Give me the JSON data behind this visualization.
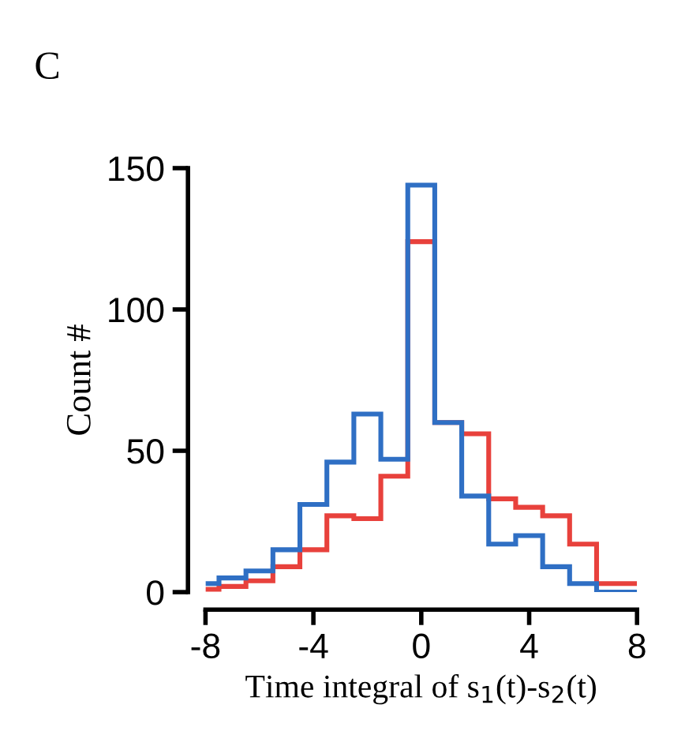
{
  "chart_data": {
    "type": "histogram",
    "title": "C",
    "xlabel": "Time integral of s$_{1}$(t)-s$_{2}$(t)",
    "ylabel": "Count #",
    "bins": [
      -8,
      -7.5,
      -6.5,
      -5.5,
      -4.5,
      -3.5,
      -2.5,
      -1.5,
      -0.5,
      0.5,
      1.5,
      2.5,
      3.5,
      4.5,
      5.5,
      6.5,
      7.5,
      8
    ],
    "series": [
      {
        "color": "#e8413c",
        "values": [
          1,
          2,
          4,
          9,
          15,
          27,
          26,
          41,
          124,
          60,
          56,
          33,
          30,
          27,
          17,
          3,
          3
        ]
      },
      {
        "color": "#2f6fc4",
        "values": [
          3,
          5,
          7.5,
          15,
          31,
          46,
          63,
          47,
          144,
          60,
          34,
          17,
          20,
          9,
          3,
          0,
          0
        ]
      }
    ],
    "xlim": [
      -8,
      8
    ],
    "xticks": [
      -8,
      -4,
      0,
      4,
      8
    ],
    "ylim": [
      0,
      150
    ],
    "yticks": [
      0,
      50,
      100,
      150
    ],
    "grid": false,
    "legend": false
  }
}
